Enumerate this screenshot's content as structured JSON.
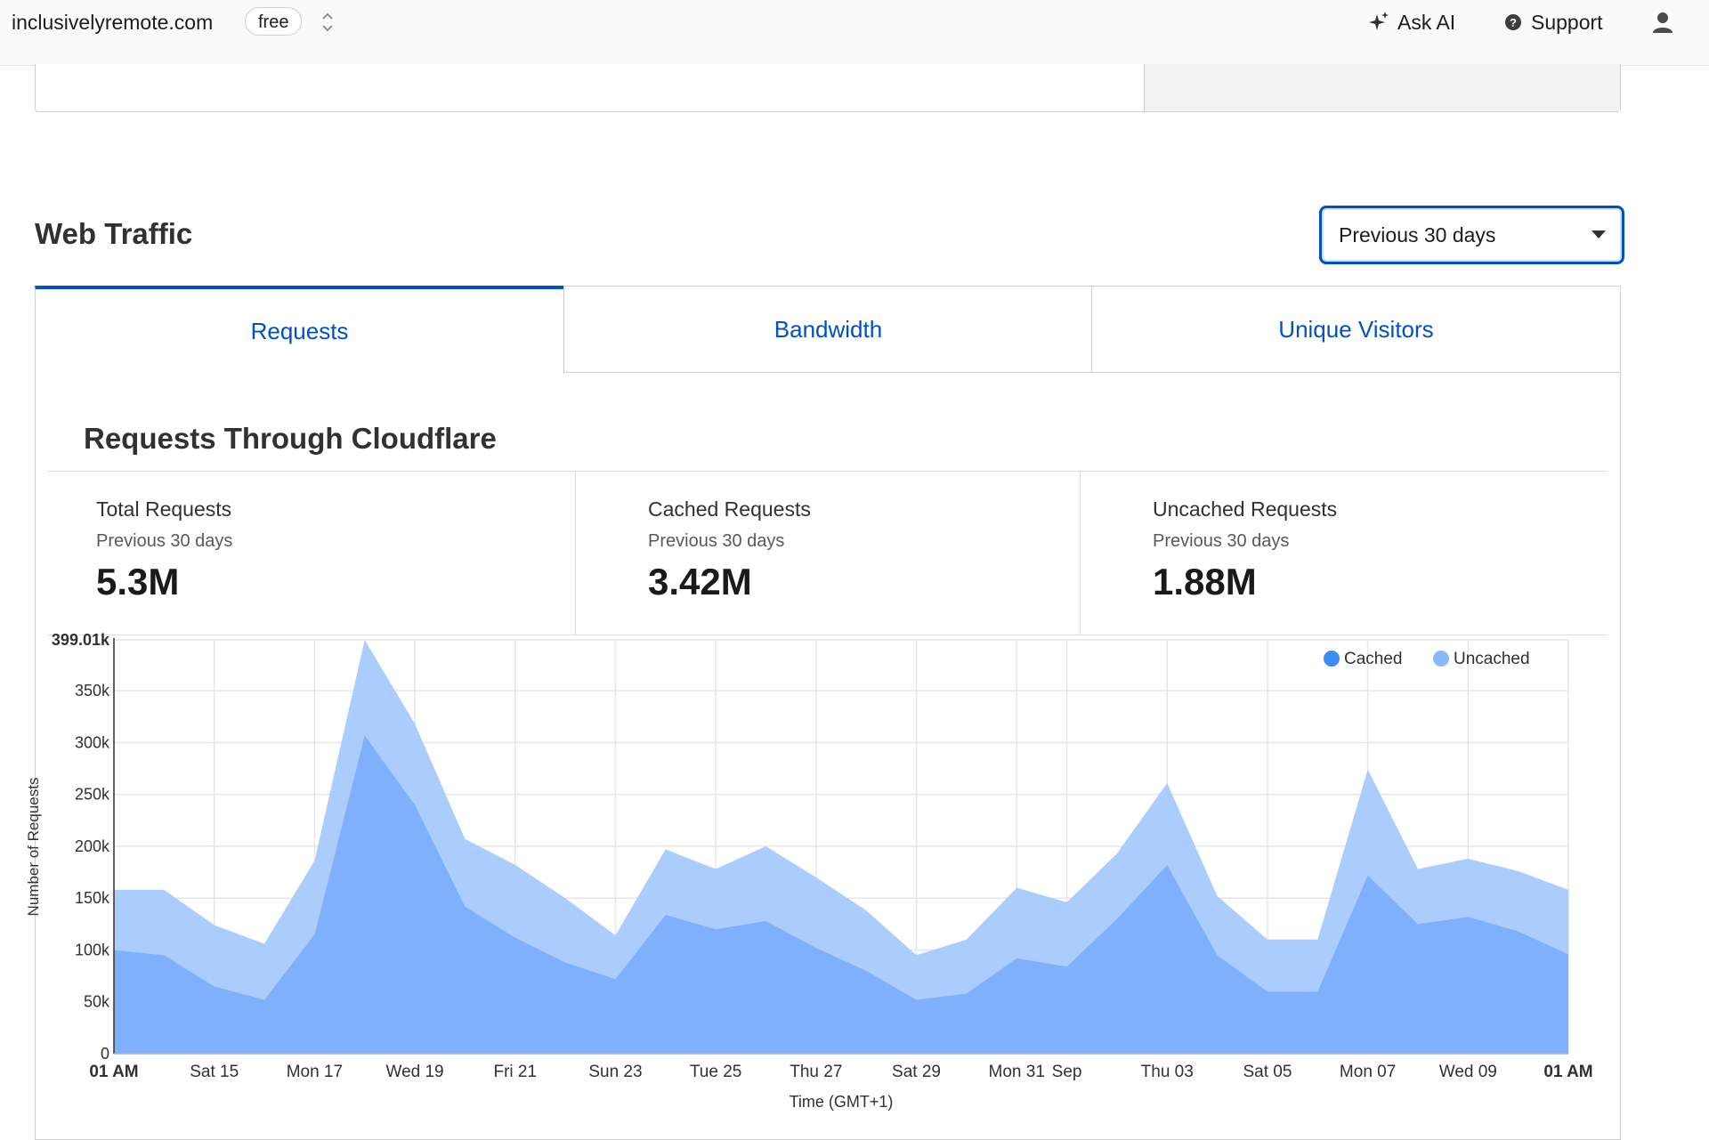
{
  "topbar": {
    "domain": "inclusivelyremote.com",
    "plan": "free",
    "ask_ai": "Ask AI",
    "support": "Support"
  },
  "section": {
    "title": "Web Traffic",
    "range_value": "Previous 30 days"
  },
  "tabs": [
    {
      "label": "Requests",
      "active": true
    },
    {
      "label": "Bandwidth",
      "active": false
    },
    {
      "label": "Unique Visitors",
      "active": false
    }
  ],
  "panel": {
    "title": "Requests Through Cloudflare",
    "stats": [
      {
        "label": "Total Requests",
        "sub": "Previous 30 days",
        "value": "5.3M"
      },
      {
        "label": "Cached Requests",
        "sub": "Previous 30 days",
        "value": "3.42M"
      },
      {
        "label": "Uncached Requests",
        "sub": "Previous 30 days",
        "value": "1.88M"
      }
    ]
  },
  "colors": {
    "accent": "#0051c3",
    "cached": "#7fb0fb",
    "uncached": "#aacdfd",
    "legend_cached": "#3c8cf2",
    "legend_uncached": "#8ab9fa"
  },
  "chart_data": {
    "type": "area",
    "stacked": true,
    "xlabel": "Time (GMT+1)",
    "ylabel": "Number of Requests",
    "ylim": [
      0,
      399010
    ],
    "ytick_values": [
      0,
      50000,
      100000,
      150000,
      200000,
      250000,
      300000,
      350000,
      399010
    ],
    "ytick_labels": [
      "0",
      "50k",
      "100k",
      "150k",
      "200k",
      "250k",
      "300k",
      "350k",
      "399.01k"
    ],
    "x_tick_labels": [
      "01 AM",
      "Sat 15",
      "Mon 17",
      "Wed 19",
      "Fri 21",
      "Sun 23",
      "Tue 25",
      "Thu 27",
      "Sat 29",
      "Mon 31",
      "Sep",
      "Thu 03",
      "Sat 05",
      "Mon 07",
      "Wed 09",
      "01 AM"
    ],
    "x_tick_days": [
      0,
      2,
      4,
      6,
      8,
      10,
      12,
      14,
      16,
      18,
      19,
      21,
      23,
      25,
      27,
      29
    ],
    "x_tick_bold": [
      true,
      false,
      false,
      false,
      false,
      false,
      false,
      false,
      false,
      false,
      false,
      false,
      false,
      false,
      false,
      true
    ],
    "legend": [
      "Cached",
      "Uncached"
    ],
    "legend_position": "top-right",
    "grid": true,
    "x": [
      0,
      1,
      2,
      3,
      4,
      5,
      6,
      7,
      8,
      9,
      10,
      11,
      12,
      13,
      14,
      15,
      16,
      17,
      18,
      19,
      20,
      21,
      22,
      23,
      24,
      25,
      26,
      27,
      28,
      29
    ],
    "series": [
      {
        "name": "Cached",
        "values": [
          100000,
          95000,
          65000,
          52000,
          115000,
          307000,
          240000,
          142000,
          112000,
          88000,
          72000,
          134000,
          120000,
          128000,
          102000,
          80000,
          52000,
          58000,
          92000,
          84000,
          130000,
          182000,
          95000,
          60000,
          60000,
          172000,
          125000,
          132000,
          118000,
          96000
        ]
      },
      {
        "name": "Total",
        "values": [
          158000,
          158000,
          124000,
          106000,
          186000,
          399010,
          318000,
          207000,
          182000,
          150000,
          114000,
          197000,
          178000,
          200000,
          170000,
          138000,
          95000,
          110000,
          160000,
          146000,
          193000,
          261000,
          152000,
          110000,
          110000,
          274000,
          178000,
          188000,
          176000,
          158000
        ]
      }
    ]
  }
}
